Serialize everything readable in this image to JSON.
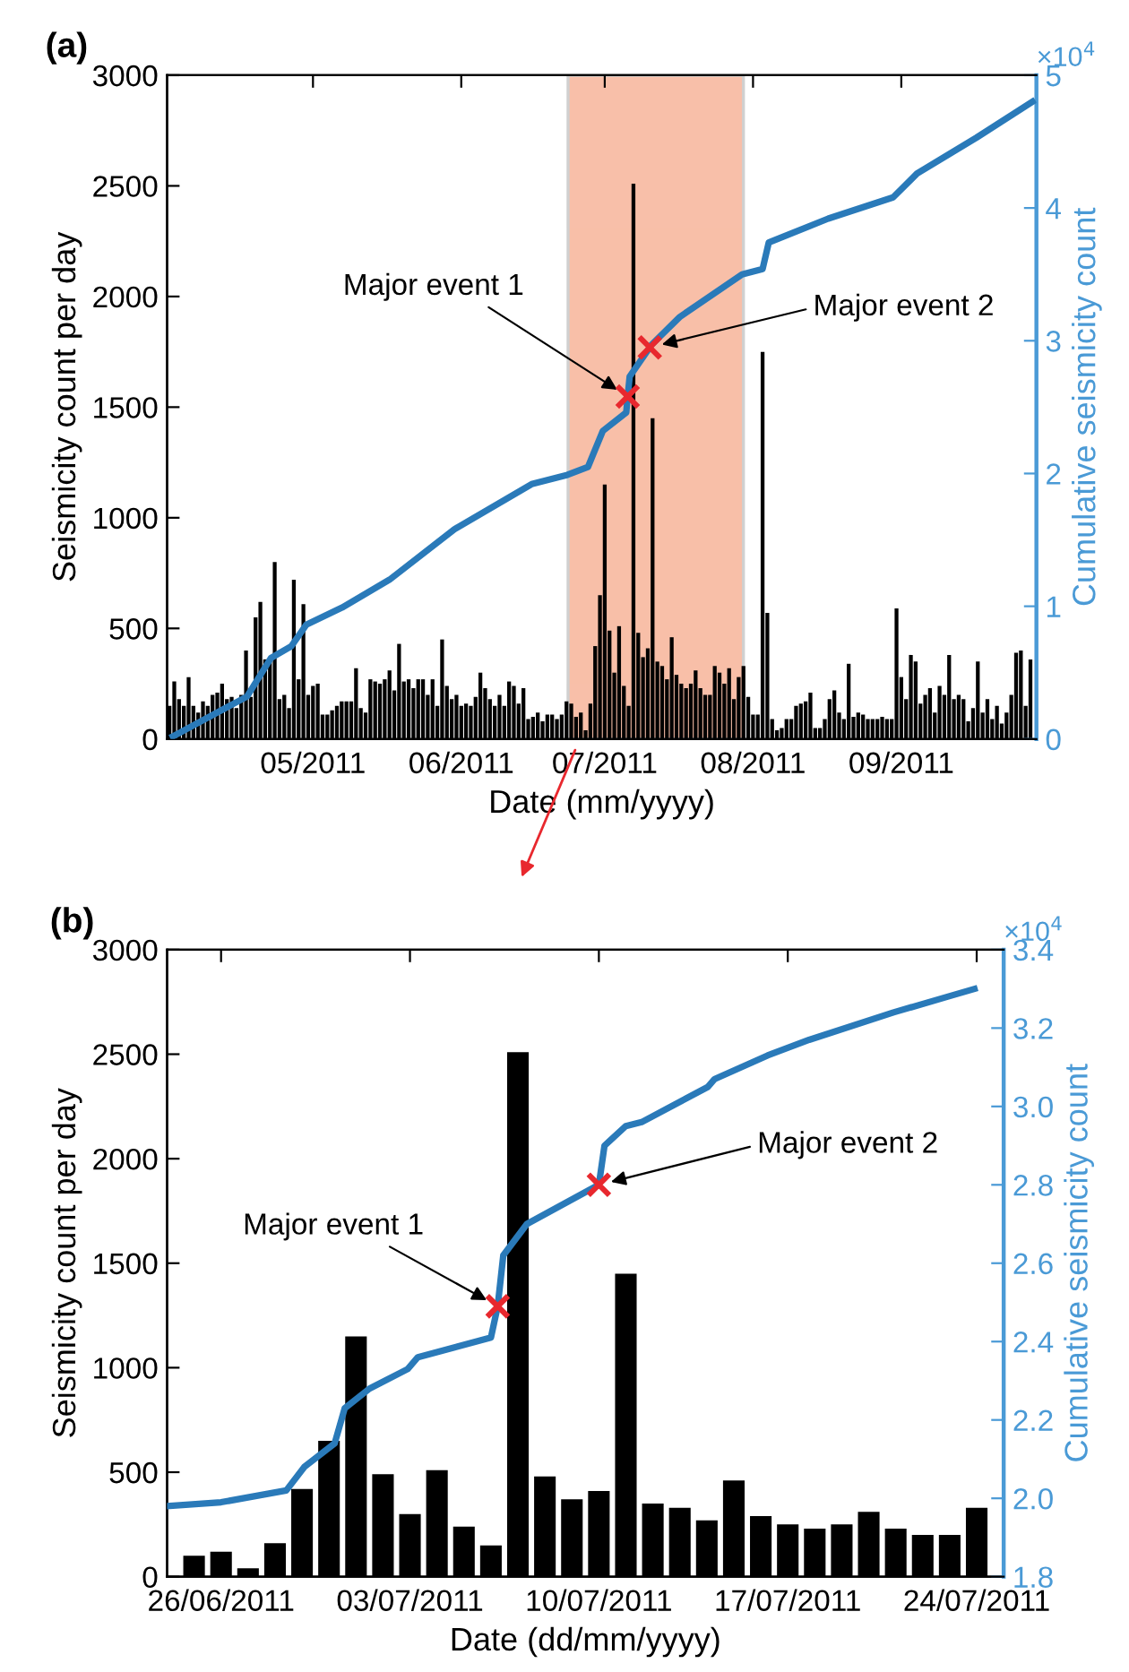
{
  "chart_data": [
    {
      "type": "bar",
      "title": "(a)",
      "xlabel": "Date (mm/yyyy)",
      "ylabel": "Seismicity count per day",
      "y2label": "Cumulative seismicity count",
      "x": [
        "2011-04-01",
        "2011-04-02",
        "2011-04-03",
        "2011-04-04",
        "2011-04-05",
        "2011-04-06",
        "2011-04-07",
        "2011-04-08",
        "2011-04-09",
        "2011-04-10",
        "2011-04-11",
        "2011-04-12",
        "2011-04-13",
        "2011-04-14",
        "2011-04-15",
        "2011-04-16",
        "2011-04-17",
        "2011-04-18",
        "2011-04-19",
        "2011-04-20",
        "2011-04-21",
        "2011-04-22",
        "2011-04-23",
        "2011-04-24",
        "2011-04-25",
        "2011-04-26",
        "2011-04-27",
        "2011-04-28",
        "2011-04-29",
        "2011-04-30",
        "2011-05-01",
        "2011-05-02",
        "2011-05-03",
        "2011-05-04",
        "2011-05-05",
        "2011-05-06",
        "2011-05-07",
        "2011-05-08",
        "2011-05-09",
        "2011-05-10",
        "2011-05-11",
        "2011-05-12",
        "2011-05-13",
        "2011-05-14",
        "2011-05-15",
        "2011-05-16",
        "2011-05-17",
        "2011-05-18",
        "2011-05-19",
        "2011-05-20",
        "2011-05-21",
        "2011-05-22",
        "2011-05-23",
        "2011-05-24",
        "2011-05-25",
        "2011-05-26",
        "2011-05-27",
        "2011-05-28",
        "2011-05-29",
        "2011-05-30",
        "2011-05-31",
        "2011-06-01",
        "2011-06-02",
        "2011-06-03",
        "2011-06-04",
        "2011-06-05",
        "2011-06-06",
        "2011-06-07",
        "2011-06-08",
        "2011-06-09",
        "2011-06-10",
        "2011-06-11",
        "2011-06-12",
        "2011-06-13",
        "2011-06-14",
        "2011-06-15",
        "2011-06-16",
        "2011-06-17",
        "2011-06-18",
        "2011-06-19",
        "2011-06-20",
        "2011-06-21",
        "2011-06-22",
        "2011-06-23",
        "2011-06-24",
        "2011-06-25",
        "2011-06-26",
        "2011-06-27",
        "2011-06-28",
        "2011-06-29",
        "2011-06-30",
        "2011-07-01",
        "2011-07-02",
        "2011-07-03",
        "2011-07-04",
        "2011-07-05",
        "2011-07-06",
        "2011-07-07",
        "2011-07-08",
        "2011-07-09",
        "2011-07-10",
        "2011-07-11",
        "2011-07-12",
        "2011-07-13",
        "2011-07-14",
        "2011-07-15",
        "2011-07-16",
        "2011-07-17",
        "2011-07-18",
        "2011-07-19",
        "2011-07-20",
        "2011-07-21",
        "2011-07-22",
        "2011-07-23",
        "2011-07-24",
        "2011-07-25",
        "2011-07-26",
        "2011-07-27",
        "2011-07-28",
        "2011-07-29",
        "2011-07-30",
        "2011-07-31",
        "2011-08-01",
        "2011-08-02",
        "2011-08-03",
        "2011-08-04",
        "2011-08-05",
        "2011-08-06",
        "2011-08-07",
        "2011-08-08",
        "2011-08-09",
        "2011-08-10",
        "2011-08-11",
        "2011-08-12",
        "2011-08-13",
        "2011-08-14",
        "2011-08-15",
        "2011-08-16",
        "2011-08-17",
        "2011-08-18",
        "2011-08-19",
        "2011-08-20",
        "2011-08-21",
        "2011-08-22",
        "2011-08-23",
        "2011-08-24",
        "2011-08-25",
        "2011-08-26",
        "2011-08-27",
        "2011-08-28",
        "2011-08-29",
        "2011-08-30",
        "2011-08-31",
        "2011-09-01",
        "2011-09-02",
        "2011-09-03",
        "2011-09-04",
        "2011-09-05",
        "2011-09-06",
        "2011-09-07",
        "2011-09-08",
        "2011-09-09",
        "2011-09-10",
        "2011-09-11",
        "2011-09-12",
        "2011-09-13",
        "2011-09-14",
        "2011-09-15",
        "2011-09-16",
        "2011-09-17",
        "2011-09-18",
        "2011-09-19",
        "2011-09-20",
        "2011-09-21",
        "2011-09-22",
        "2011-09-23",
        "2011-09-24",
        "2011-09-25",
        "2011-09-26",
        "2011-09-27",
        "2011-09-28"
      ],
      "series": [
        {
          "color": "#000000",
          "values": [
            150,
            260,
            180,
            150,
            280,
            150,
            120,
            170,
            150,
            200,
            210,
            250,
            180,
            190,
            140,
            200,
            400,
            190,
            550,
            620,
            360,
            370,
            800,
            180,
            200,
            140,
            720,
            270,
            610,
            200,
            240,
            250,
            110,
            110,
            130,
            150,
            170,
            170,
            170,
            320,
            140,
            120,
            270,
            260,
            250,
            270,
            310,
            220,
            430,
            260,
            270,
            230,
            270,
            270,
            200,
            270,
            150,
            450,
            240,
            180,
            200,
            150,
            160,
            150,
            190,
            300,
            230,
            180,
            150,
            200,
            150,
            260,
            240,
            160,
            230,
            90,
            100,
            120,
            80,
            110,
            110,
            90,
            110,
            170,
            160,
            100,
            120,
            40,
            160,
            420,
            650,
            1150,
            490,
            300,
            510,
            240,
            150,
            2510,
            480,
            370,
            410,
            1450,
            350,
            330,
            270,
            460,
            290,
            250,
            230,
            250,
            310,
            230,
            200,
            200,
            330,
            300,
            250,
            320,
            180,
            280,
            330,
            190,
            110,
            110,
            1750,
            570,
            90,
            40,
            50,
            90,
            90,
            150,
            160,
            170,
            210,
            50,
            50,
            90,
            180,
            220,
            120,
            90,
            340,
            100,
            120,
            110,
            90,
            90,
            90,
            100,
            90,
            90,
            590,
            280,
            180,
            380,
            350,
            160,
            200,
            230,
            120,
            240,
            200,
            380,
            180,
            200,
            180,
            80,
            140,
            350,
            120,
            180,
            90,
            150,
            70,
            120,
            200,
            390,
            400,
            150,
            360
          ]
        },
        {
          "type": "line",
          "axis": "y2",
          "color": "#2a7ab9",
          "x": [
            "2011-04-01T17:00",
            "2011-04-17T05:00",
            "2011-04-22T05:00",
            "2011-04-26T12:00",
            "2011-04-29T14:00",
            "2011-05-07T02:00",
            "2011-05-17",
            "2011-05-30T14:00",
            "2011-06-15T17:00",
            "2011-06-23T05:00",
            "2011-06-27T12:00",
            "2011-06-30T14:00",
            "2011-07-05T12:00",
            "2011-07-05T19:00",
            "2011-07-06T05:00",
            "2011-07-10T10:00",
            "2011-07-10T12:00",
            "2011-07-16T17:00",
            "2011-07-29T17:00",
            "2011-08-03",
            "2011-08-04T07:00",
            "2011-08-16T17:00",
            "2011-08-30T07:00",
            "2011-09-04T07:00",
            "2011-09-16T17:00",
            "2011-09-28T10:00"
          ],
          "values": [
            0.02,
            0.32,
            0.61,
            0.7,
            0.86,
            0.99,
            1.2,
            1.58,
            1.92,
            1.99,
            2.05,
            2.32,
            2.46,
            2.58,
            2.73,
            2.95,
            2.96,
            3.18,
            3.5,
            3.54,
            3.74,
            3.92,
            4.08,
            4.26,
            4.53,
            4.8
          ]
        },
        {
          "type": "scatter",
          "axis": "y2",
          "color": "#e8282e",
          "marker": "cross",
          "x": [
            "2011-07-05T19:00",
            "2011-07-10T10:00"
          ],
          "values": [
            2.58,
            2.95
          ]
        }
      ],
      "xlim": [
        "2011-03-31T12:00",
        "2011-09-29T06:00"
      ],
      "xticks": [
        {
          "value": "2011-05-01",
          "label": "05/2011"
        },
        {
          "value": "2011-06-01",
          "label": "06/2011"
        },
        {
          "value": "2011-07-01",
          "label": "07/2011"
        },
        {
          "value": "2011-08-01",
          "label": "08/2011"
        },
        {
          "value": "2011-09-01",
          "label": "09/2011"
        }
      ],
      "ylim": [
        0,
        3000
      ],
      "yticks": [
        0,
        500,
        1000,
        1500,
        2000,
        2500,
        3000
      ],
      "y2lim": [
        0,
        5
      ],
      "y2ticks": [
        0,
        1,
        2,
        3,
        4,
        5
      ],
      "bands": [
        {
          "axis": "x",
          "from": "2011-06-23T08:00",
          "to": "2011-07-30",
          "color": "#f7b49a"
        }
      ],
      "annotations": [
        {
          "text": "Major event 1",
          "x": "2011-07-05T19:00",
          "y": 1548
        },
        {
          "text": "Major event 2",
          "x": "2011-07-10T10:00",
          "y": 1770
        },
        "×10$^{4}$"
      ]
    },
    {
      "type": "bar",
      "title": "(b)",
      "xlabel": "Date (dd/mm/yyyy)",
      "ylabel": "Seismicity count per day",
      "y2label": "Cumulative seismicity count",
      "x": [
        "2011-06-25",
        "2011-06-26",
        "2011-06-27",
        "2011-06-28",
        "2011-06-29",
        "2011-06-30",
        "2011-07-01",
        "2011-07-02",
        "2011-07-03",
        "2011-07-04",
        "2011-07-05",
        "2011-07-06",
        "2011-07-07",
        "2011-07-08",
        "2011-07-09",
        "2011-07-10",
        "2011-07-11",
        "2011-07-12",
        "2011-07-13",
        "2011-07-14",
        "2011-07-15",
        "2011-07-16",
        "2011-07-17",
        "2011-07-18",
        "2011-07-19",
        "2011-07-20",
        "2011-07-21",
        "2011-07-22",
        "2011-07-23",
        "2011-07-24"
      ],
      "series": [
        {
          "color": "#000000",
          "values": [
            100,
            120,
            40,
            160,
            420,
            650,
            1150,
            490,
            300,
            510,
            240,
            150,
            2510,
            480,
            370,
            410,
            1450,
            350,
            330,
            270,
            460,
            290,
            250,
            230,
            250,
            310,
            230,
            200,
            200,
            330
          ]
        },
        {
          "type": "line",
          "axis": "y2",
          "color": "#2a7ab9",
          "x": [
            "2011-06-24",
            "2011-06-26",
            "2011-06-28T10:00",
            "2011-06-29T02:00",
            "2011-06-30T05:00",
            "2011-06-30T14:00",
            "2011-07-01T12:00",
            "2011-07-02T22:00",
            "2011-07-03T07:00",
            "2011-07-06",
            "2011-07-06T06:00",
            "2011-07-06T11:00",
            "2011-07-07T08:00",
            "2011-07-10",
            "2011-07-10T05:00",
            "2011-07-11",
            "2011-07-11T14:00",
            "2011-07-14T01:00",
            "2011-07-14T07:00",
            "2011-07-16T06:00",
            "2011-07-17T19:00",
            "2011-07-20T22:00",
            "2011-07-22T22:00",
            "2011-07-23T22:00"
          ],
          "values": [
            1.98,
            1.99,
            2.02,
            2.08,
            2.14,
            2.23,
            2.28,
            2.33,
            2.36,
            2.41,
            2.49,
            2.62,
            2.7,
            2.8,
            2.9,
            2.95,
            2.96,
            3.05,
            3.07,
            3.13,
            3.17,
            3.24,
            3.28,
            3.3
          ]
        },
        {
          "type": "scatter",
          "axis": "y2",
          "color": "#e8282e",
          "marker": "cross",
          "x": [
            "2011-07-06T06:00",
            "2011-07-10"
          ],
          "values": [
            2.49,
            2.8
          ]
        }
      ],
      "xlim": [
        "2011-06-24",
        "2011-07-25"
      ],
      "xticks": [
        {
          "value": "2011-06-26",
          "label": "26/06/2011"
        },
        {
          "value": "2011-07-03",
          "label": "03/07/2011"
        },
        {
          "value": "2011-07-10",
          "label": "10/07/2011"
        },
        {
          "value": "2011-07-17",
          "label": "17/07/2011"
        },
        {
          "value": "2011-07-24",
          "label": "24/07/2011"
        }
      ],
      "ylim": [
        0,
        3000
      ],
      "yticks": [
        0,
        500,
        1000,
        1500,
        2000,
        2500,
        3000
      ],
      "y2lim": [
        1.8,
        3.4
      ],
      "y2ticks": [
        1.8,
        {
          "value": 2,
          "label": "2.0"
        },
        2.2,
        2.4,
        2.6,
        2.8,
        {
          "value": 3,
          "label": "3.0"
        },
        3.2,
        3.4
      ],
      "annotations": [
        {
          "text": "Major event 1",
          "x": "2011-07-06T06:00",
          "y": 1294
        },
        {
          "text": "Major event 2",
          "x": "2011-07-10",
          "y": 1875
        },
        "×10$^{4}$"
      ]
    }
  ]
}
